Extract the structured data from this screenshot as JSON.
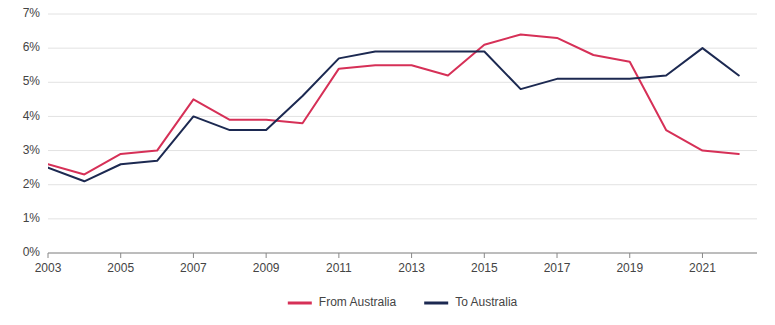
{
  "chart_data": {
    "type": "line",
    "x": [
      2003,
      2004,
      2005,
      2006,
      2007,
      2008,
      2009,
      2010,
      2011,
      2012,
      2013,
      2014,
      2015,
      2016,
      2017,
      2018,
      2019,
      2020,
      2021,
      2022
    ],
    "series": [
      {
        "name": "From Australia",
        "color": "#d63057",
        "values": [
          2.6,
          2.3,
          2.9,
          3.0,
          4.5,
          3.9,
          3.9,
          3.8,
          5.4,
          5.5,
          5.5,
          5.2,
          6.1,
          6.4,
          6.3,
          5.8,
          5.6,
          3.6,
          3.0,
          2.9
        ]
      },
      {
        "name": "To Australia",
        "color": "#1c2951",
        "values": [
          2.5,
          2.1,
          2.6,
          2.7,
          4.0,
          3.6,
          3.6,
          4.6,
          5.7,
          5.9,
          5.9,
          5.9,
          5.9,
          4.8,
          5.1,
          5.1,
          5.1,
          5.2,
          6.0,
          5.2
        ]
      }
    ],
    "xlim": [
      2003,
      2022.5
    ],
    "xticks": [
      2003,
      2005,
      2007,
      2009,
      2011,
      2013,
      2015,
      2017,
      2019,
      2021
    ],
    "ylim": [
      0,
      7
    ],
    "yticks": [
      {
        "value": 0,
        "label": "0%"
      },
      {
        "value": 1,
        "label": "1%"
      },
      {
        "value": 2,
        "label": "2%"
      },
      {
        "value": 3,
        "label": "3%"
      },
      {
        "value": 4,
        "label": "4%"
      },
      {
        "value": 5,
        "label": "5%"
      },
      {
        "value": 6,
        "label": "6%"
      },
      {
        "value": 7,
        "label": "7%"
      }
    ],
    "grid": true,
    "legend": "bottom"
  }
}
